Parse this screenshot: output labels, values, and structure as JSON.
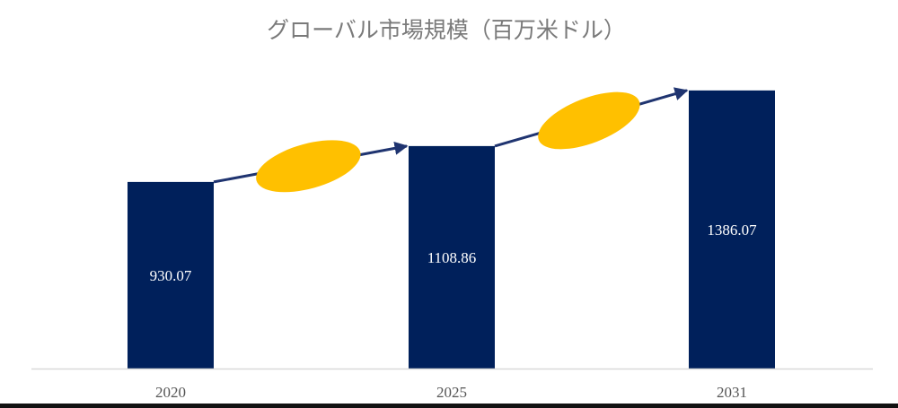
{
  "chart_data": {
    "type": "bar",
    "title": "グローバル市場規模（百万米ドル）",
    "categories": [
      "2020",
      "2025",
      "2031"
    ],
    "values": [
      930.07,
      1108.86,
      1386.07
    ],
    "value_labels": [
      "930.07",
      "1108.86",
      "1386.07"
    ],
    "xlabel": "",
    "ylabel": "",
    "ylim": [
      0,
      1600
    ],
    "grid": false,
    "legend": "none",
    "annotations": [
      "growth-arrow",
      "growth-arrow"
    ],
    "colors": {
      "bar": "#00205b",
      "arrow": "#1f3470",
      "ellipse": "#ffc000",
      "axis": "#d9d9d9",
      "title": "#7a7a7a"
    }
  }
}
